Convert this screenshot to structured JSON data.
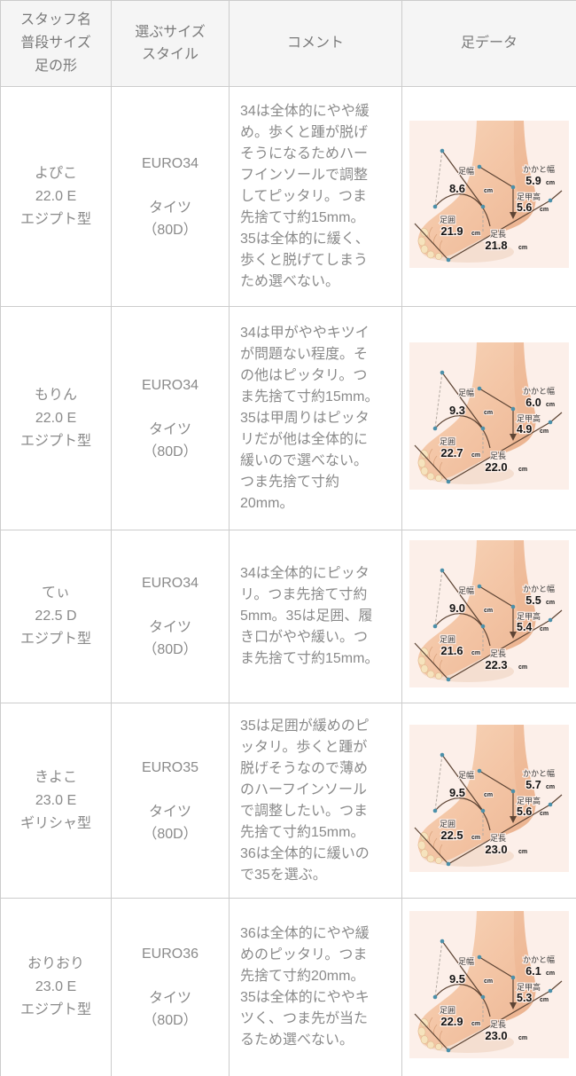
{
  "header": {
    "staff": "スタッフ名\n普段サイズ\n足の形",
    "size": "選ぶサイズ\nスタイル",
    "comment": "コメント",
    "foot": "足データ"
  },
  "foot_labels": {
    "width": "足幅",
    "heel": "かかと幅",
    "instep": "足甲高",
    "girth": "足囲",
    "length": "足長",
    "unit": "cm"
  },
  "colors": {
    "header_bg": "#f5f5f5",
    "border": "#cccccc",
    "text": "#8a8a8a",
    "measure_line": "#5d4434",
    "measure_dot": "#4b90aa",
    "skin": "#f3c4a4",
    "diagram_bg": "#fcefe9"
  },
  "rows": [
    {
      "name": "よぴこ\n22.0 E\nエジプト型",
      "size": "EURO34\n\nタイツ\n（80D）",
      "comment": "34は全体的にやや緩め。歩くと踵が脱げそうになるためハーフインソールで調整してピッタリ。つま先捨て寸約15mm。35は全体的に緩く、歩くと脱げてしまうため選べない。",
      "foot": {
        "width": "8.6",
        "heel": "5.9",
        "instep": "5.6",
        "girth": "21.9",
        "length": "21.8"
      }
    },
    {
      "name": "もりん\n22.0 E\nエジプト型",
      "size": "EURO34\n\nタイツ\n（80D）",
      "comment": "34は甲がややキツイが問題ない程度。その他はピッタリ。つま先捨て寸約15mm。35は甲周りはピッタリだが他は全体的に緩いので選べない。つま先捨て寸約20mm。",
      "foot": {
        "width": "9.3",
        "heel": "6.0",
        "instep": "4.9",
        "girth": "22.7",
        "length": "22.0"
      }
    },
    {
      "name": "てぃ\n22.5 D\nエジプト型",
      "size": "EURO34\n\nタイツ\n（80D）",
      "comment": "34は全体的にピッタリ。つま先捨て寸約5mm。35は足囲、履き口がやや緩い。つま先捨て寸約15mm。",
      "foot": {
        "width": "9.0",
        "heel": "5.5",
        "instep": "5.4",
        "girth": "21.6",
        "length": "22.3"
      }
    },
    {
      "name": "きよこ\n23.0 E\nギリシャ型",
      "size": "EURO35\n\nタイツ\n（80D）",
      "comment": "35は足囲が緩めのピッタリ。歩くと踵が脱げそうなので薄めのハーフインソールで調整したい。つま先捨て寸約15mm。36は全体的に緩いので35を選ぶ。",
      "foot": {
        "width": "9.5",
        "heel": "5.7",
        "instep": "5.6",
        "girth": "22.5",
        "length": "23.0"
      }
    },
    {
      "name": "おりおり\n23.0 E\nエジプト型",
      "size": "EURO36\n\nタイツ\n（80D）",
      "comment": "36は全体的にやや緩めのピッタリ。つま先捨て寸約20mm。35は全体的にややキツく、つま先が当たるため選べない。",
      "foot": {
        "width": "9.5",
        "heel": "6.1",
        "instep": "5.3",
        "girth": "22.9",
        "length": "23.0"
      }
    }
  ]
}
